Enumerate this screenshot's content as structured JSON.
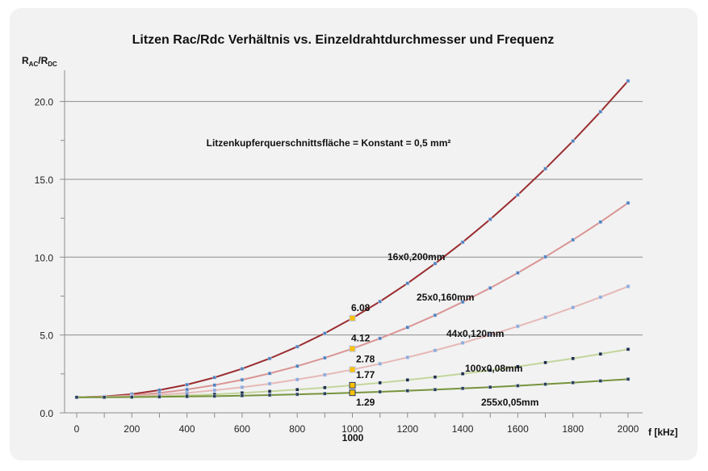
{
  "chart_data": {
    "type": "line",
    "title": "Litzen Rac/Rdc Verhältnis vs. Einzeldrahtdurchmesser und Frequenz",
    "annotation": "Litzenkupferquerschnittsfläche = Konstant = 0,5 mm²",
    "ylabel_main": "R",
    "ylabel_sub1": "AC",
    "ylabel_sep": "/R",
    "ylabel_sub2": "DC",
    "xlabel": "f  [kHz]",
    "xlim": [
      0,
      2000
    ],
    "ylim": [
      0,
      22
    ],
    "xticks": [
      "0",
      "200",
      "400",
      "600",
      "800",
      "1000",
      "1200",
      "1400",
      "1600",
      "1800",
      "2000"
    ],
    "yticks": [
      "0.0",
      "5.0",
      "10.0",
      "15.0",
      "20.0"
    ],
    "highlight_x_label": "1000",
    "grid": "horizontal",
    "x": [
      0,
      100,
      200,
      300,
      400,
      500,
      600,
      700,
      800,
      900,
      1000,
      1100,
      1200,
      1300,
      1400,
      1500,
      1600,
      1700,
      1800,
      1900,
      2000
    ],
    "series": [
      {
        "name": "16x0,200mm",
        "color": "#9b2d30",
        "marker": "#4f81bd",
        "label_value": "6.08",
        "values": [
          1.0,
          1.05,
          1.2,
          1.46,
          1.81,
          2.27,
          2.83,
          3.49,
          4.25,
          5.11,
          6.08,
          7.15,
          8.32,
          9.59,
          10.96,
          12.43,
          14.0,
          15.68,
          17.46,
          19.34,
          21.32
        ]
      },
      {
        "name": "25x0,160mm",
        "color": "#d99594",
        "marker": "#4f81bd",
        "label_value": "4.12",
        "values": [
          1.0,
          1.03,
          1.12,
          1.28,
          1.5,
          1.78,
          2.12,
          2.53,
          3.0,
          3.53,
          4.12,
          4.78,
          5.49,
          6.27,
          7.12,
          8.02,
          8.99,
          10.02,
          11.11,
          12.26,
          13.48
        ]
      },
      {
        "name": "44x0,120mm",
        "color": "#e6b9b8",
        "marker": "#8eaadb",
        "label_value": "2.78",
        "values": [
          1.0,
          1.02,
          1.07,
          1.16,
          1.28,
          1.45,
          1.64,
          1.87,
          2.14,
          2.44,
          2.78,
          3.15,
          3.56,
          4.01,
          4.49,
          5.01,
          5.56,
          6.14,
          6.77,
          7.43,
          8.12
        ]
      },
      {
        "name": "100x0,08mm",
        "color": "#c3d69b",
        "marker": "#1f2a44",
        "label_value": "1.77",
        "values": [
          1.0,
          1.01,
          1.03,
          1.07,
          1.12,
          1.19,
          1.28,
          1.38,
          1.49,
          1.62,
          1.77,
          1.93,
          2.11,
          2.3,
          2.51,
          2.73,
          2.97,
          3.23,
          3.49,
          3.78,
          4.08
        ]
      },
      {
        "name": "255x0,05mm",
        "color": "#77933c",
        "marker": "#2a3d55",
        "label_value": "1.29",
        "values": [
          1.0,
          1.0,
          1.01,
          1.03,
          1.05,
          1.07,
          1.1,
          1.14,
          1.19,
          1.23,
          1.29,
          1.35,
          1.42,
          1.49,
          1.57,
          1.65,
          1.74,
          1.84,
          1.94,
          2.05,
          2.16
        ]
      }
    ],
    "highlight_marker_color": "#ffc000"
  }
}
